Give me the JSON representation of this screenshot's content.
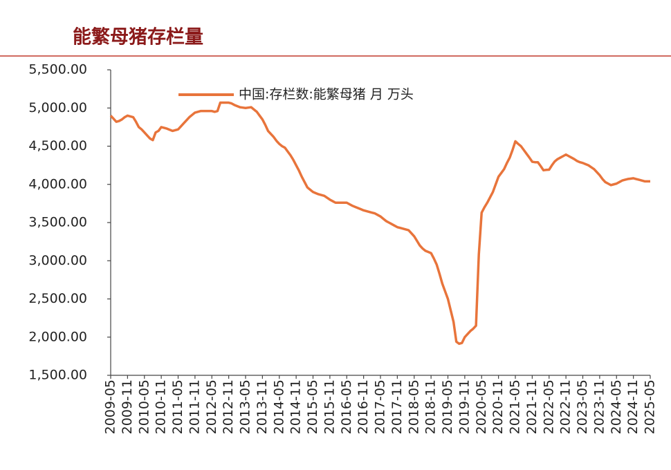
{
  "chart_data": {
    "type": "line",
    "title": "能繁母猪存栏量",
    "categories": [
      "2009-05",
      null,
      null,
      null,
      null,
      null,
      "2009-11",
      null,
      null,
      null,
      null,
      null,
      "2010-05",
      null,
      null,
      null,
      null,
      null,
      "2010-11",
      null,
      null,
      null,
      null,
      null,
      "2011-05",
      null,
      null,
      null,
      null,
      null,
      "2011-11",
      null,
      null,
      null,
      null,
      null,
      "2012-05",
      null,
      null,
      null,
      null,
      null,
      "2012-11",
      null,
      null,
      null,
      null,
      null,
      "2013-05",
      null,
      null,
      null,
      null,
      null,
      "2013-11",
      null,
      null,
      null,
      null,
      null,
      "2014-05",
      null,
      null,
      null,
      null,
      null,
      "2014-11",
      null,
      null,
      null,
      null,
      null,
      "2015-05",
      null,
      null,
      null,
      null,
      null,
      "2015-11",
      null,
      null,
      null,
      null,
      null,
      "2016-05",
      null,
      null,
      null,
      null,
      null,
      "2016-11",
      null,
      null,
      null,
      null,
      null,
      "2017-05",
      null,
      null,
      null,
      null,
      null,
      "2017-11",
      null,
      null,
      null,
      null,
      null,
      "2018-05",
      null,
      null,
      null,
      null,
      null,
      "2018-11",
      null,
      null,
      null,
      null,
      null,
      "2019-05",
      null,
      null,
      null,
      null,
      null,
      "2019-11",
      null,
      null,
      null,
      null,
      null,
      "2020-05",
      null,
      null,
      null,
      null,
      null,
      "2020-11",
      null,
      null,
      null,
      null,
      null,
      "2021-05",
      null,
      null,
      null,
      null,
      null,
      "2021-11",
      null,
      null,
      null,
      null,
      null,
      "2022-05",
      null,
      null,
      null,
      null,
      null,
      "2022-11",
      null,
      null,
      null,
      null,
      null,
      "2023-05",
      null,
      null,
      null,
      null,
      null,
      "2023-11",
      null,
      null,
      null,
      null,
      null,
      "2024-05",
      null,
      null,
      null,
      null,
      null,
      "2024-11",
      null,
      null,
      null,
      null,
      null,
      "2025-05"
    ],
    "series": [
      {
        "name": "中国:存栏数:能繁母猪 月 万头",
        "color": "#e8743b",
        "values": [
          4900,
          4860,
          4820,
          4830,
          4850,
          4880,
          4900,
          4890,
          4880,
          4820,
          4750,
          4720,
          4680,
          4640,
          4600,
          4580,
          4680,
          4700,
          4750,
          4740,
          4730,
          4715,
          4700,
          4710,
          4720,
          4760,
          4800,
          4840,
          4880,
          4910,
          4940,
          4950,
          4960,
          4960,
          4960,
          4960,
          4960,
          4950,
          4960,
          5070,
          5070,
          5070,
          5070,
          5060,
          5040,
          5025,
          5010,
          5005,
          5000,
          5005,
          5010,
          4980,
          4950,
          4900,
          4850,
          4780,
          4700,
          4660,
          4620,
          4570,
          4530,
          4500,
          4480,
          4430,
          4380,
          4320,
          4250,
          4180,
          4100,
          4030,
          3960,
          3930,
          3900,
          3885,
          3870,
          3860,
          3850,
          3825,
          3800,
          3780,
          3760,
          3760,
          3760,
          3760,
          3760,
          3740,
          3720,
          3705,
          3690,
          3675,
          3660,
          3650,
          3640,
          3630,
          3620,
          3600,
          3580,
          3550,
          3520,
          3500,
          3480,
          3460,
          3440,
          3430,
          3420,
          3410,
          3400,
          3360,
          3320,
          3260,
          3200,
          3160,
          3130,
          3115,
          3100,
          3030,
          2950,
          2830,
          2700,
          2600,
          2500,
          2350,
          2200,
          1940,
          1913,
          1924,
          2000,
          2040,
          2080,
          2110,
          2150,
          3080,
          3630,
          3700,
          3760,
          3830,
          3900,
          4000,
          4100,
          4150,
          4200,
          4280,
          4350,
          4450,
          4564,
          4530,
          4500,
          4450,
          4400,
          4350,
          4296,
          4290,
          4290,
          4240,
          4185,
          4190,
          4192,
          4250,
          4300,
          4330,
          4350,
          4370,
          4390,
          4370,
          4350,
          4330,
          4305,
          4290,
          4280,
          4265,
          4250,
          4225,
          4200,
          4160,
          4120,
          4070,
          4030,
          4010,
          3990,
          4000,
          4010,
          4030,
          4050,
          4060,
          4070,
          4075,
          4080,
          4070,
          4060,
          4050,
          4040,
          4040,
          4040
        ]
      }
    ],
    "ylim": [
      1500,
      5500
    ],
    "yticks": [
      {
        "value": 1500,
        "label": "1,500.00"
      },
      {
        "value": 2000,
        "label": "2,000.00"
      },
      {
        "value": 2500,
        "label": "2,500.00"
      },
      {
        "value": 3000,
        "label": "3,000.00"
      },
      {
        "value": 3500,
        "label": "3,500.00"
      },
      {
        "value": 4000,
        "label": "4,000.00"
      },
      {
        "value": 4500,
        "label": "4,500.00"
      },
      {
        "value": 5000,
        "label": "5,000.00"
      },
      {
        "value": 5500,
        "label": "5,500.00"
      }
    ],
    "grid": false
  }
}
